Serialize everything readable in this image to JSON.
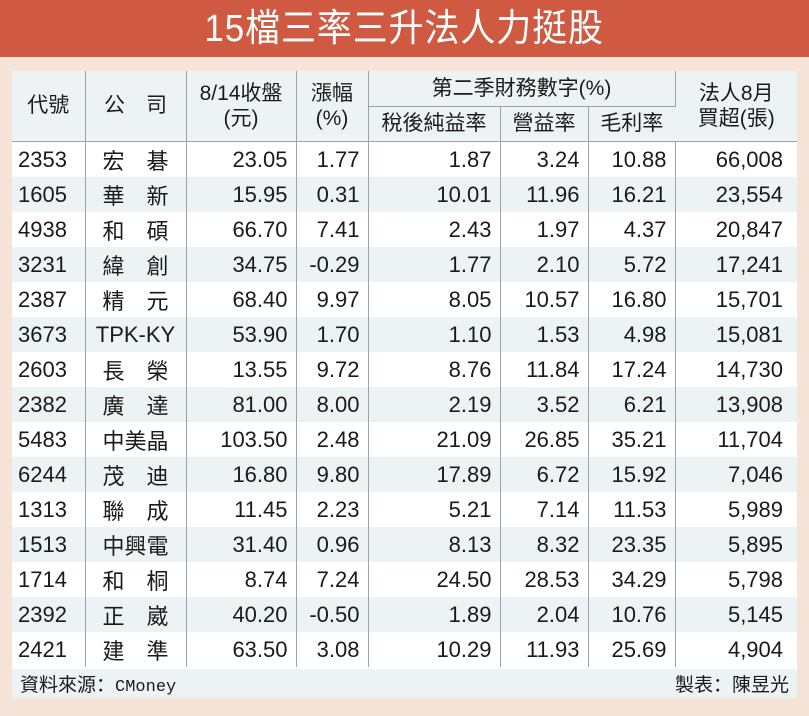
{
  "title": "15檔三率三升法人力挺股",
  "header": {
    "code": "代號",
    "company": "公　司",
    "close_line1": "8/14收盤",
    "close_line2": "(元)",
    "change_line1": "漲幅",
    "change_line2": "(%)",
    "q2_group": "第二季財務數字(%)",
    "net_margin": "稅後純益率",
    "op_margin": "營益率",
    "gross_margin": "毛利率",
    "inst_line1": "法人8月",
    "inst_line2": "買超(張)"
  },
  "rows": [
    {
      "code": "2353",
      "name": "宏　碁",
      "close": "23.05",
      "change": "1.77",
      "net": "1.87",
      "op": "3.24",
      "gross": "10.88",
      "inst": "66,008"
    },
    {
      "code": "1605",
      "name": "華　新",
      "close": "15.95",
      "change": "0.31",
      "net": "10.01",
      "op": "11.96",
      "gross": "16.21",
      "inst": "23,554"
    },
    {
      "code": "4938",
      "name": "和　碩",
      "close": "66.70",
      "change": "7.41",
      "net": "2.43",
      "op": "1.97",
      "gross": "4.37",
      "inst": "20,847"
    },
    {
      "code": "3231",
      "name": "緯　創",
      "close": "34.75",
      "change": "-0.29",
      "net": "1.77",
      "op": "2.10",
      "gross": "5.72",
      "inst": "17,241"
    },
    {
      "code": "2387",
      "name": "精　元",
      "close": "68.40",
      "change": "9.97",
      "net": "8.05",
      "op": "10.57",
      "gross": "16.80",
      "inst": "15,701"
    },
    {
      "code": "3673",
      "name": "TPK-KY",
      "close": "53.90",
      "change": "1.70",
      "net": "1.10",
      "op": "1.53",
      "gross": "4.98",
      "inst": "15,081"
    },
    {
      "code": "2603",
      "name": "長　榮",
      "close": "13.55",
      "change": "9.72",
      "net": "8.76",
      "op": "11.84",
      "gross": "17.24",
      "inst": "14,730"
    },
    {
      "code": "2382",
      "name": "廣　達",
      "close": "81.00",
      "change": "8.00",
      "net": "2.19",
      "op": "3.52",
      "gross": "6.21",
      "inst": "13,908"
    },
    {
      "code": "5483",
      "name": "中美晶",
      "close": "103.50",
      "change": "2.48",
      "net": "21.09",
      "op": "26.85",
      "gross": "35.21",
      "inst": "11,704"
    },
    {
      "code": "6244",
      "name": "茂　迪",
      "close": "16.80",
      "change": "9.80",
      "net": "17.89",
      "op": "6.72",
      "gross": "15.92",
      "inst": "7,046"
    },
    {
      "code": "1313",
      "name": "聯　成",
      "close": "11.45",
      "change": "2.23",
      "net": "5.21",
      "op": "7.14",
      "gross": "11.53",
      "inst": "5,989"
    },
    {
      "code": "1513",
      "name": "中興電",
      "close": "31.40",
      "change": "0.96",
      "net": "8.13",
      "op": "8.32",
      "gross": "23.35",
      "inst": "5,895"
    },
    {
      "code": "1714",
      "name": "和　桐",
      "close": "8.74",
      "change": "7.24",
      "net": "24.50",
      "op": "28.53",
      "gross": "34.29",
      "inst": "5,798"
    },
    {
      "code": "2392",
      "name": "正　崴",
      "close": "40.20",
      "change": "-0.50",
      "net": "1.89",
      "op": "2.04",
      "gross": "10.76",
      "inst": "5,145"
    },
    {
      "code": "2421",
      "name": "建　準",
      "close": "63.50",
      "change": "3.08",
      "net": "10.29",
      "op": "11.93",
      "gross": "25.69",
      "inst": "4,904"
    }
  ],
  "footer": {
    "source_label": "資料來源：",
    "source_value": "CMoney",
    "credit": "製表：陳昱光"
  },
  "colors": {
    "title_bg": "#cf5a41",
    "page_bg": "#f6e4d8",
    "stripe": "#edf3f5",
    "grid": "#9aa3a8"
  }
}
